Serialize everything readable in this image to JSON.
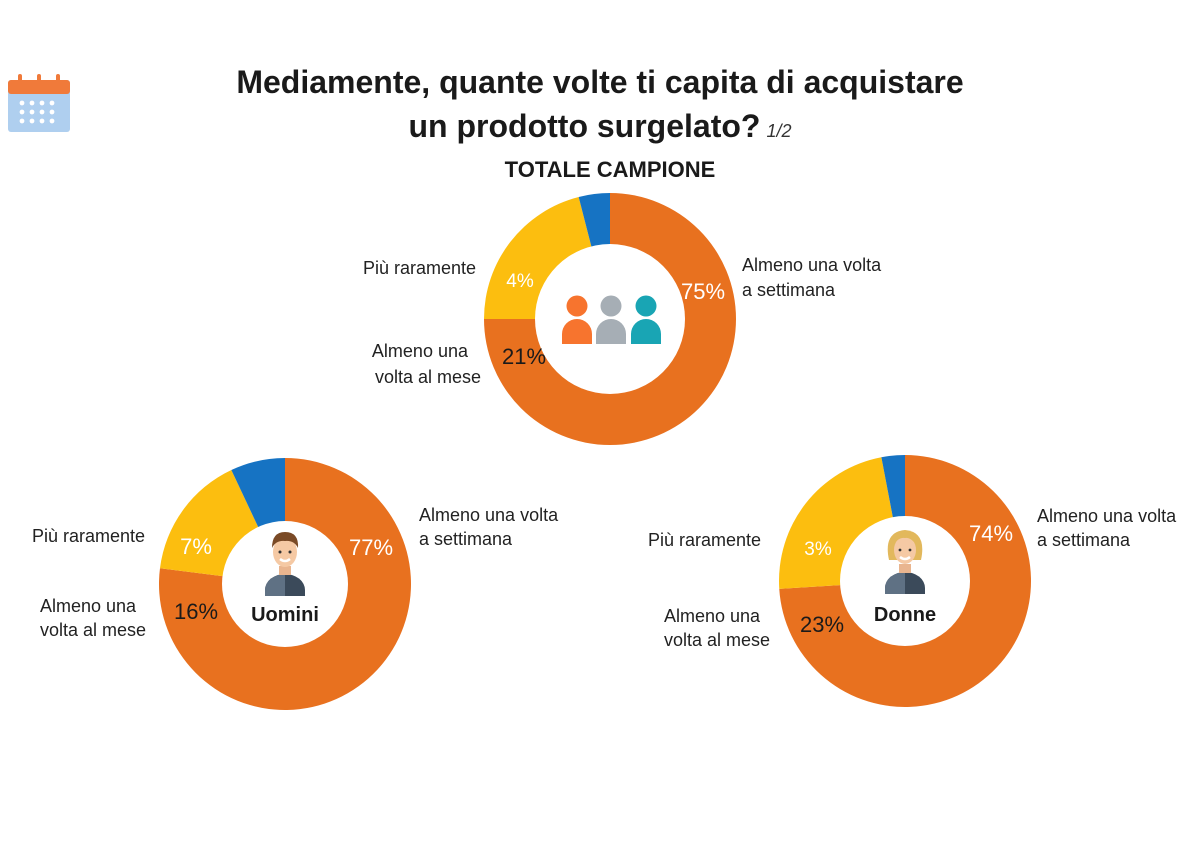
{
  "header": {
    "title_line1": "Mediamente, quante volte ti capita di acquistare",
    "title_line2": "un prodotto surgelato?",
    "page_indicator": "1/2",
    "subtitle": "TOTALE CAMPIONE",
    "icon": "calendar-icon"
  },
  "colors": {
    "weekly": "#E8711F",
    "monthly": "#FCBE0F",
    "rarely": "#1673C3"
  },
  "chart_data": [
    {
      "type": "pie",
      "group": "totale",
      "center_icon": "people-group-icon",
      "labels": [
        "Almeno una volta a settimana",
        "Almeno una volta al mese",
        "Più raramente"
      ],
      "values": [
        75,
        21,
        4
      ],
      "value_labels": [
        "75%",
        "21%",
        "4%"
      ]
    },
    {
      "type": "pie",
      "group": "Uomini",
      "center_icon": "man-avatar-icon",
      "labels": [
        "Almeno una volta a settimana",
        "Almeno una volta al mese",
        "Più raramente"
      ],
      "values": [
        77,
        16,
        7
      ],
      "value_labels": [
        "77%",
        "16%",
        "7%"
      ]
    },
    {
      "type": "pie",
      "group": "Donne",
      "center_icon": "woman-avatar-icon",
      "labels": [
        "Almeno una volta a settimana",
        "Almeno una volta al mese",
        "Più raramente"
      ],
      "values": [
        74,
        23,
        3
      ],
      "value_labels": [
        "74%",
        "23%",
        "3%"
      ]
    }
  ],
  "label_text": {
    "weekly_line1": "Almeno una volta",
    "weekly_line2": "a settimana",
    "monthly_line1": "Almeno una",
    "monthly_line2": "volta al mese",
    "rarely": "Più raramente"
  }
}
